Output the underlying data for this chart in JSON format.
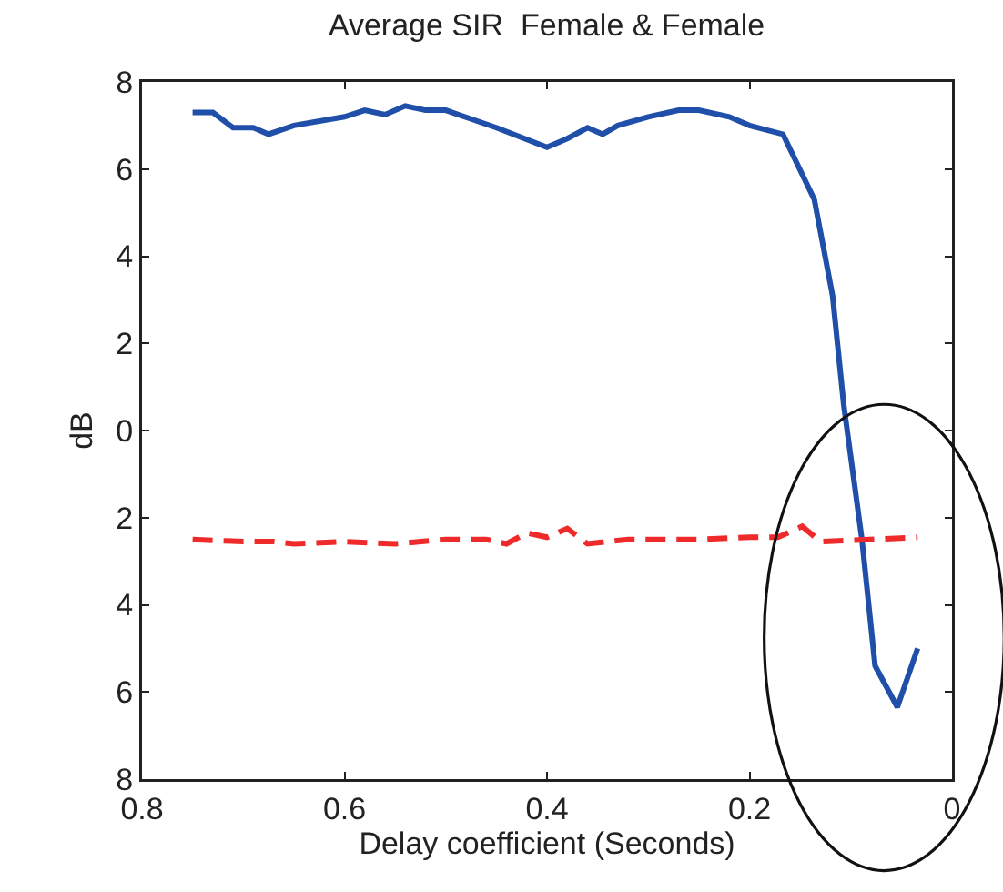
{
  "chart_data": {
    "type": "line",
    "title": "Average SIR  Female & Female",
    "xlabel": "Delay coefficient (Seconds)",
    "ylabel": "dB",
    "xlim": [
      0.8,
      0
    ],
    "xticks": [
      0.8,
      0.6,
      0.4,
      0.2,
      0
    ],
    "ylim": [
      -8,
      8
    ],
    "yticks": [
      {
        "value": 8,
        "label": "8"
      },
      {
        "value": 6,
        "label": "6"
      },
      {
        "value": 4,
        "label": "4"
      },
      {
        "value": 2,
        "label": "2"
      },
      {
        "value": 0,
        "label": "0"
      },
      {
        "value": -2,
        "label": "2"
      },
      {
        "value": -4,
        "label": "4"
      },
      {
        "value": -6,
        "label": "6"
      },
      {
        "value": -8,
        "label": "8"
      }
    ],
    "grid": false,
    "series": [
      {
        "color": "#1f4fa8",
        "line_style": "solid",
        "x": [
          0.75,
          0.73,
          0.71,
          0.69,
          0.675,
          0.65,
          0.6,
          0.58,
          0.56,
          0.54,
          0.52,
          0.5,
          0.45,
          0.4,
          0.38,
          0.36,
          0.345,
          0.33,
          0.3,
          0.27,
          0.25,
          0.22,
          0.2,
          0.167,
          0.136,
          0.118,
          0.107,
          0.089,
          0.076,
          0.054,
          0.034
        ],
        "values": [
          7.3,
          7.3,
          6.95,
          6.95,
          6.8,
          7.0,
          7.2,
          7.35,
          7.25,
          7.45,
          7.35,
          7.35,
          6.95,
          6.5,
          6.7,
          6.95,
          6.8,
          7.0,
          7.2,
          7.35,
          7.35,
          7.2,
          7.0,
          6.8,
          5.3,
          3.1,
          0.6,
          -2.5,
          -5.4,
          -6.35,
          -5.0
        ]
      },
      {
        "color": "#ee2a2a",
        "line_style": "dashed",
        "x": [
          0.75,
          0.7,
          0.67,
          0.65,
          0.6,
          0.55,
          0.5,
          0.46,
          0.44,
          0.42,
          0.4,
          0.38,
          0.36,
          0.32,
          0.25,
          0.2,
          0.172,
          0.148,
          0.13,
          0.034
        ],
        "values": [
          -2.5,
          -2.55,
          -2.55,
          -2.6,
          -2.55,
          -2.6,
          -2.5,
          -2.5,
          -2.6,
          -2.35,
          -2.45,
          -2.25,
          -2.6,
          -2.5,
          -2.5,
          -2.45,
          -2.45,
          -2.2,
          -2.55,
          -2.45
        ]
      }
    ]
  }
}
